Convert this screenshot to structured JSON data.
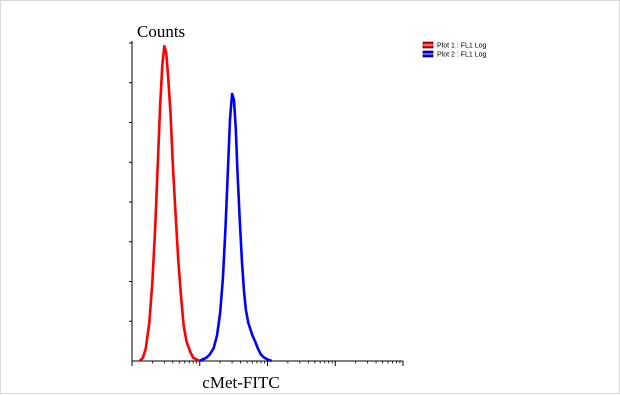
{
  "chart_data": {
    "type": "line",
    "ylabel": "Counts",
    "xlabel": "cMet-FITC",
    "x_scale": "log",
    "xlim": [
      1,
      10000
    ],
    "ylim": [
      0,
      100
    ],
    "grid": false,
    "legend_position": "top-right",
    "series": [
      {
        "name": "Plot 1 : FL1 Log",
        "color": "#ff0000",
        "points": [
          [
            1.3,
            0
          ],
          [
            1.45,
            1
          ],
          [
            1.6,
            4
          ],
          [
            1.8,
            12
          ],
          [
            2.0,
            25
          ],
          [
            2.2,
            42
          ],
          [
            2.4,
            62
          ],
          [
            2.6,
            80
          ],
          [
            2.8,
            93
          ],
          [
            3.0,
            99
          ],
          [
            3.2,
            97
          ],
          [
            3.4,
            90
          ],
          [
            3.7,
            78
          ],
          [
            4.0,
            62
          ],
          [
            4.4,
            46
          ],
          [
            4.8,
            32
          ],
          [
            5.3,
            20
          ],
          [
            5.8,
            11
          ],
          [
            6.4,
            6
          ],
          [
            7.2,
            3
          ],
          [
            8.0,
            1
          ],
          [
            9.0,
            0.5
          ],
          [
            10.0,
            0
          ]
        ]
      },
      {
        "name": "Plot 2 : FL1 Log",
        "color": "#0000ff",
        "points": [
          [
            10,
            0
          ],
          [
            11,
            0.5
          ],
          [
            12.5,
            1
          ],
          [
            14,
            2
          ],
          [
            16,
            4
          ],
          [
            18,
            8
          ],
          [
            20,
            15
          ],
          [
            22,
            26
          ],
          [
            24,
            42
          ],
          [
            26,
            60
          ],
          [
            28,
            76
          ],
          [
            30,
            84
          ],
          [
            32,
            82
          ],
          [
            34,
            73
          ],
          [
            36,
            60
          ],
          [
            39,
            44
          ],
          [
            42,
            31
          ],
          [
            45,
            22
          ],
          [
            48,
            16
          ],
          [
            52,
            12
          ],
          [
            56,
            10
          ],
          [
            60,
            8
          ],
          [
            66,
            6
          ],
          [
            72,
            4
          ],
          [
            80,
            2
          ],
          [
            90,
            1
          ],
          [
            100,
            0.5
          ],
          [
            115,
            0
          ]
        ]
      }
    ]
  }
}
